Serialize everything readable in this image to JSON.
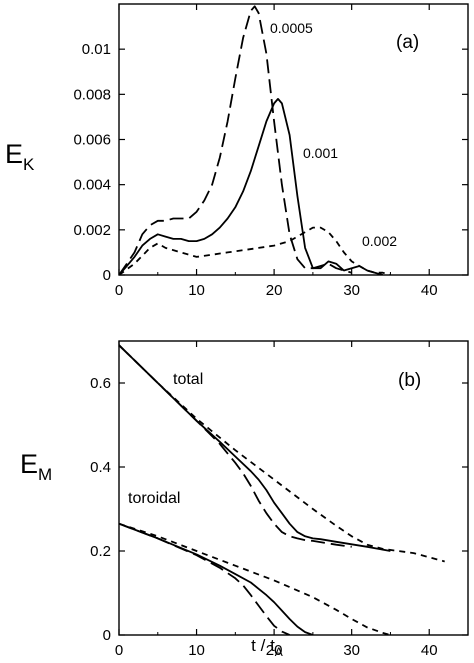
{
  "figure": {
    "panels": [
      {
        "label": "(a)",
        "ylabel": "E",
        "ylabel_sub": "K",
        "xlim": [
          0,
          45
        ],
        "ylim": [
          0,
          0.012
        ],
        "xticks": [
          0,
          10,
          20,
          30,
          40
        ],
        "yticks": [
          0,
          0.002,
          0.004,
          0.006,
          0.008,
          0.01
        ],
        "ytick_labels": [
          "0",
          "0.002",
          "0.004",
          "0.006",
          "0.008",
          "0.01"
        ],
        "curve_labels": [
          "0.0005",
          "0.001",
          "0.002"
        ]
      },
      {
        "label": "(b)",
        "ylabel": "E",
        "ylabel_sub": "M",
        "xlabel": "t / t",
        "xlabel_sub": "A",
        "xlim": [
          0,
          45
        ],
        "ylim": [
          0,
          0.7
        ],
        "xticks": [
          0,
          10,
          20,
          30,
          40
        ],
        "yticks": [
          0,
          0.2,
          0.4,
          0.6
        ],
        "ytick_labels": [
          "0",
          "0.2",
          "0.4",
          "0.6"
        ],
        "curve_labels": [
          "total",
          "toroidal"
        ]
      }
    ]
  },
  "chart_data": [
    {
      "type": "line",
      "title": "",
      "label": "(a)",
      "xlabel": "",
      "ylabel": "E_K",
      "xlim": [
        0,
        45
      ],
      "ylim": [
        0,
        0.012
      ],
      "grid": false,
      "series": [
        {
          "name": "0.0005",
          "style": "long-dash",
          "x": [
            0,
            1,
            2,
            3,
            4,
            5,
            6,
            7,
            8,
            9,
            10,
            11,
            12,
            13,
            14,
            15,
            16,
            17,
            17.5,
            18,
            19,
            20,
            21,
            22,
            23,
            24,
            25,
            26,
            27,
            28,
            29,
            30
          ],
          "y": [
            0,
            0.0005,
            0.001,
            0.0018,
            0.0022,
            0.0024,
            0.0024,
            0.0025,
            0.0025,
            0.0025,
            0.0028,
            0.0033,
            0.004,
            0.0052,
            0.0068,
            0.0087,
            0.0105,
            0.0117,
            0.0119,
            0.0116,
            0.0098,
            0.0068,
            0.004,
            0.0018,
            0.0007,
            0.0003,
            0.0003,
            0.0004,
            0.0005,
            0.0003,
            0.0002,
            0.0001
          ]
        },
        {
          "name": "0.001",
          "style": "solid",
          "x": [
            0,
            1,
            2,
            3,
            4,
            5,
            6,
            7,
            8,
            9,
            10,
            11,
            12,
            13,
            14,
            15,
            16,
            17,
            18,
            19,
            20,
            20.5,
            21,
            22,
            23,
            24,
            25,
            26,
            27,
            28,
            29,
            30,
            31,
            32,
            33,
            34
          ],
          "y": [
            0,
            0.0004,
            0.0008,
            0.0013,
            0.0016,
            0.0018,
            0.0017,
            0.0016,
            0.0016,
            0.0015,
            0.0015,
            0.0016,
            0.0018,
            0.0021,
            0.0025,
            0.003,
            0.0037,
            0.0046,
            0.0057,
            0.0068,
            0.0076,
            0.0078,
            0.0076,
            0.0062,
            0.0035,
            0.0012,
            0.0003,
            0.0003,
            0.0006,
            0.0005,
            0.0002,
            0.0003,
            0.0004,
            0.0002,
            0.0001,
            0
          ]
        },
        {
          "name": "0.002",
          "style": "short-dash",
          "x": [
            0,
            2,
            4,
            5,
            6,
            8,
            10,
            12,
            14,
            16,
            18,
            20,
            22,
            24,
            25,
            26,
            27,
            28,
            29,
            30,
            31,
            32,
            33,
            34,
            35
          ],
          "y": [
            0,
            0.0005,
            0.0012,
            0.0014,
            0.0012,
            0.001,
            0.0008,
            0.0009,
            0.001,
            0.0011,
            0.0012,
            0.0013,
            0.0015,
            0.0019,
            0.0021,
            0.0021,
            0.0019,
            0.0015,
            0.001,
            0.0006,
            0.0004,
            0.0002,
            0.0001,
            0.0001,
            0
          ]
        }
      ]
    },
    {
      "type": "line",
      "title": "",
      "label": "(b)",
      "xlabel": "t / t_A",
      "ylabel": "E_M",
      "xlim": [
        0,
        45
      ],
      "ylim": [
        0,
        0.7
      ],
      "grid": false,
      "series": [
        {
          "name": "total, long-dash",
          "style": "long-dash",
          "x": [
            0,
            5,
            10,
            13,
            15,
            16,
            17,
            18,
            19,
            20,
            21,
            22,
            23,
            24,
            25,
            28,
            30
          ],
          "y": [
            0.69,
            0.6,
            0.51,
            0.455,
            0.41,
            0.385,
            0.355,
            0.32,
            0.29,
            0.265,
            0.245,
            0.235,
            0.23,
            0.226,
            0.224,
            0.215,
            0.21
          ]
        },
        {
          "name": "total, solid",
          "style": "solid",
          "x": [
            0,
            5,
            10,
            13,
            15,
            17,
            18,
            19,
            20,
            21,
            22,
            23,
            24,
            25,
            26,
            28,
            30,
            32,
            35
          ],
          "y": [
            0.69,
            0.6,
            0.51,
            0.46,
            0.425,
            0.39,
            0.37,
            0.345,
            0.315,
            0.29,
            0.265,
            0.245,
            0.235,
            0.23,
            0.228,
            0.222,
            0.216,
            0.21,
            0.2
          ]
        },
        {
          "name": "total, short-dash",
          "style": "short-dash",
          "x": [
            0,
            5,
            10,
            15,
            20,
            25,
            28,
            30,
            32,
            34,
            36,
            38,
            40,
            42
          ],
          "y": [
            0.69,
            0.6,
            0.515,
            0.44,
            0.37,
            0.3,
            0.26,
            0.235,
            0.215,
            0.205,
            0.2,
            0.195,
            0.185,
            0.175
          ]
        },
        {
          "name": "toroidal, long-dash",
          "style": "long-dash",
          "x": [
            0,
            5,
            10,
            13,
            15,
            16,
            17,
            18,
            19,
            20,
            21,
            22
          ],
          "y": [
            0.265,
            0.23,
            0.19,
            0.16,
            0.135,
            0.118,
            0.095,
            0.07,
            0.045,
            0.022,
            0.008,
            0
          ]
        },
        {
          "name": "toroidal, solid",
          "style": "solid",
          "x": [
            0,
            5,
            10,
            13,
            15,
            17,
            18,
            19,
            20,
            21,
            22,
            23,
            24,
            25
          ],
          "y": [
            0.265,
            0.23,
            0.192,
            0.165,
            0.145,
            0.125,
            0.11,
            0.095,
            0.078,
            0.058,
            0.038,
            0.02,
            0.007,
            0
          ]
        },
        {
          "name": "toroidal, short-dash",
          "style": "short-dash",
          "x": [
            0,
            5,
            10,
            15,
            20,
            25,
            28,
            30,
            32,
            34,
            35
          ],
          "y": [
            0.265,
            0.235,
            0.2,
            0.165,
            0.13,
            0.09,
            0.06,
            0.038,
            0.018,
            0.005,
            0
          ]
        }
      ]
    }
  ]
}
